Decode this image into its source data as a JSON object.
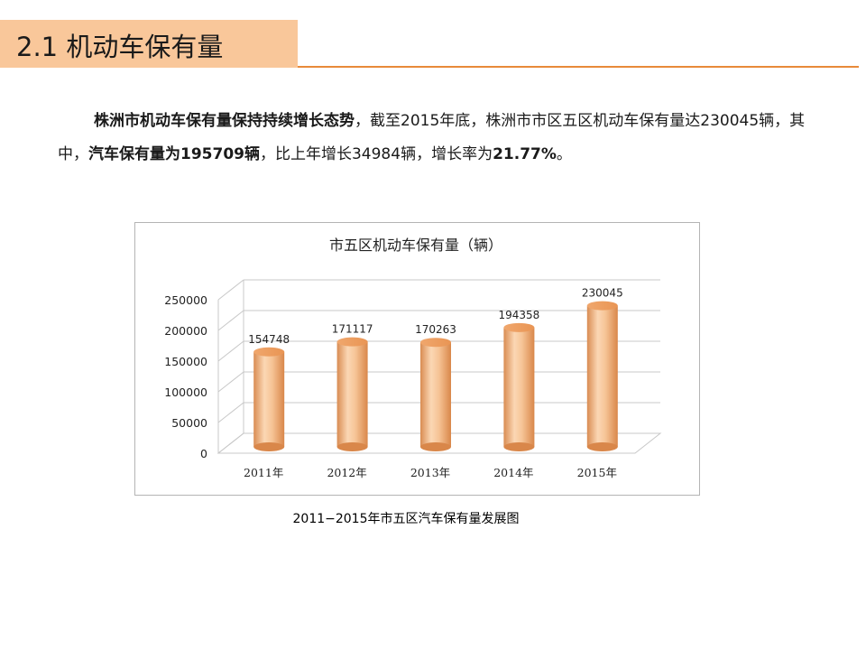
{
  "slide": {
    "title": "2.1 机动车保有量"
  },
  "paragraph": {
    "bold1": "株洲市机动车保有量保持持续增长态势",
    "text1": "，截至2015年底，株洲市市区五区机动车保有量达230045辆，其中，",
    "bold2": "汽车保有量为195709辆",
    "text2": "，比上年增长34984辆，增长率为",
    "bold3": "21.77%",
    "text3": "。"
  },
  "caption": "2011−2015年市五区汽车保有量发展图",
  "colors": {
    "accent": "#e88a3a",
    "title_bg": "#f9c79a",
    "bar": "#f2b98a"
  },
  "chart_data": {
    "type": "bar",
    "title": "市五区机动车保有量（辆）",
    "categories": [
      "2011年",
      "2012年",
      "2013年",
      "2014年",
      "2015年"
    ],
    "values": [
      154748,
      171117,
      170263,
      194358,
      230045
    ],
    "data_labels": [
      "154748",
      "171117",
      "170263",
      "194358",
      "230045"
    ],
    "y_ticks": [
      "0",
      "50000",
      "100000",
      "150000",
      "200000",
      "250000"
    ],
    "ylim": [
      0,
      250000
    ],
    "grid": true,
    "style": "3d-cylinder"
  }
}
